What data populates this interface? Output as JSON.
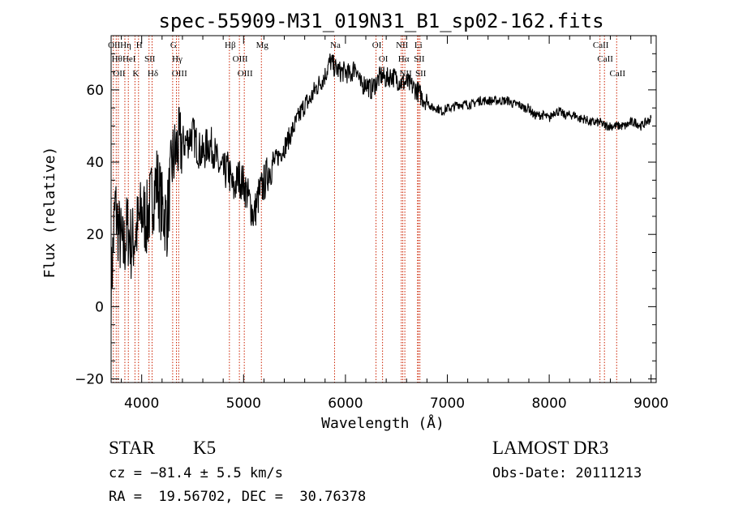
{
  "chart_data": {
    "type": "line",
    "title": "spec-55909-M31_019N31_B1_sp02-162.fits",
    "xlabel": "Wavelength (Å)",
    "ylabel": "Flux (relative)",
    "xlim": [
      3700,
      9050
    ],
    "ylim": [
      -21,
      75
    ],
    "xticks": [
      4000,
      5000,
      6000,
      7000,
      8000,
      9000
    ],
    "yticks": [
      -20,
      0,
      20,
      40,
      60
    ],
    "xtick_labels": [
      "4000",
      "5000",
      "6000",
      "7000",
      "8000",
      "9000"
    ],
    "ytick_labels": [
      "−20",
      "0",
      "20",
      "40",
      "60"
    ],
    "series": [
      {
        "name": "spectrum",
        "color": "#000000",
        "x": [
          3700,
          3740,
          3780,
          3820,
          3860,
          3900,
          3950,
          4000,
          4050,
          4100,
          4150,
          4200,
          4250,
          4300,
          4350,
          4400,
          4450,
          4500,
          4550,
          4600,
          4650,
          4700,
          4750,
          4800,
          4850,
          4900,
          4950,
          5000,
          5050,
          5100,
          5150,
          5200,
          5250,
          5300,
          5350,
          5400,
          5450,
          5500,
          5550,
          5600,
          5650,
          5700,
          5750,
          5800,
          5850,
          5900,
          5950,
          6000,
          6050,
          6100,
          6150,
          6200,
          6250,
          6300,
          6350,
          6400,
          6450,
          6500,
          6550,
          6600,
          6650,
          6700,
          6750,
          6800,
          6850,
          6900,
          6950,
          7000,
          7050,
          7100,
          7150,
          7200,
          7250,
          7300,
          7350,
          7400,
          7450,
          7500,
          7550,
          7600,
          7650,
          7700,
          7750,
          7800,
          7850,
          7900,
          7950,
          8000,
          8050,
          8100,
          8150,
          8200,
          8250,
          8300,
          8350,
          8400,
          8450,
          8500,
          8550,
          8600,
          8650,
          8700,
          8750,
          8800,
          8850,
          8900,
          8950,
          9000
        ],
        "y": [
          5,
          28,
          20,
          15,
          22,
          17,
          21,
          26,
          24,
          30,
          35,
          27,
          24,
          40,
          44,
          45,
          46,
          48,
          44,
          42,
          45,
          44,
          39,
          37,
          38,
          32,
          36,
          34,
          30,
          25,
          31,
          34,
          38,
          40,
          42,
          44,
          47,
          50,
          53,
          56,
          57,
          60,
          62,
          64,
          68,
          66,
          65,
          65,
          64,
          67,
          61,
          62,
          60,
          62,
          64,
          63,
          64,
          63,
          62,
          62,
          61,
          60,
          58,
          57,
          55,
          55,
          54,
          55,
          55,
          56,
          56,
          56,
          56,
          57,
          57,
          57,
          57,
          57,
          57,
          57,
          56,
          56,
          55,
          55,
          53,
          53,
          53,
          52,
          54,
          54,
          53,
          53,
          53,
          52,
          52,
          51,
          51,
          51,
          50,
          50,
          50,
          50,
          50,
          51,
          51,
          50,
          51,
          52
        ]
      }
    ],
    "line_markers": [
      {
        "wl": 3722,
        "label": "OII"
      },
      {
        "wl": 3750,
        "label": "Hθ"
      },
      {
        "wl": 3771,
        "label": "OII"
      },
      {
        "wl": 3835,
        "label": "Hη"
      },
      {
        "wl": 3869,
        "label": "HeI"
      },
      {
        "wl": 3934,
        "label": "K"
      },
      {
        "wl": 3969,
        "label": "H"
      },
      {
        "wl": 4072,
        "label": "SII"
      },
      {
        "wl": 4102,
        "label": "Hδ"
      },
      {
        "wl": 4304,
        "label": "G"
      },
      {
        "wl": 4341,
        "label": "Hγ"
      },
      {
        "wl": 4363,
        "label": "OIII"
      },
      {
        "wl": 4861,
        "label": "Hβ"
      },
      {
        "wl": 4959,
        "label": "OIII"
      },
      {
        "wl": 5007,
        "label": "OIII"
      },
      {
        "wl": 5175,
        "label": "Mg"
      },
      {
        "wl": 5893,
        "label": "Na"
      },
      {
        "wl": 6300,
        "label": "OI"
      },
      {
        "wl": 6364,
        "label": "OI"
      },
      {
        "wl": 6548,
        "label": "NII"
      },
      {
        "wl": 6563,
        "label": "Hα"
      },
      {
        "wl": 6583,
        "label": "NII"
      },
      {
        "wl": 6708,
        "label": "Li"
      },
      {
        "wl": 6716,
        "label": "SII"
      },
      {
        "wl": 6731,
        "label": "SII"
      },
      {
        "wl": 8498,
        "label": "CaII"
      },
      {
        "wl": 8542,
        "label": "CaII"
      },
      {
        "wl": 8662,
        "label": "CaII"
      }
    ]
  },
  "info": {
    "class": "STAR",
    "subclass": "K5",
    "survey": "LAMOST DR3",
    "cz": "cz = −81.4 ± 5.5 km/s",
    "obs_date": "Obs-Date: 20111213",
    "radec": "RA =  19.56702, DEC =  30.76378"
  },
  "colors": {
    "marker": "#cc2200",
    "line": "#000000"
  }
}
